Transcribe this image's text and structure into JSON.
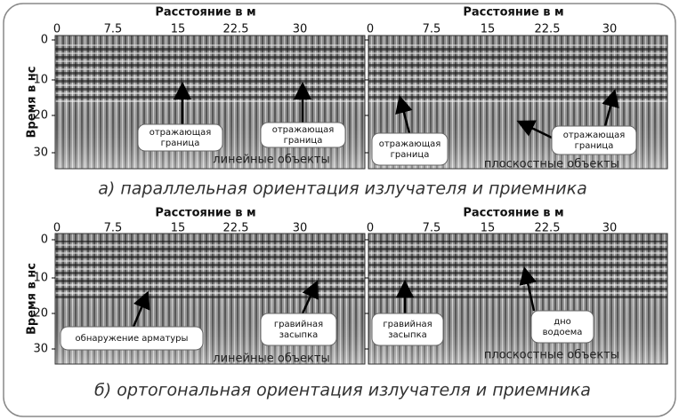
{
  "figure": {
    "rows": [
      {
        "y_axis_title": "Время в нс",
        "yticks": [
          "0",
          "10",
          "20",
          "30"
        ],
        "caption": "а) параллельная ориентация излучателя и приемника",
        "panels": [
          {
            "x_axis_title": "Расстояние в м",
            "xticks": [
              "0",
              "7.5",
              "15",
              "22.5",
              "30"
            ],
            "callouts": [
              [
                "отражающая",
                "граница"
              ],
              [
                "отражающая",
                "граница"
              ]
            ],
            "footer": "линейные объекты"
          },
          {
            "x_axis_title": "Расстояние в м",
            "xticks": [
              "0",
              "7.5",
              "15",
              "22.5",
              "30"
            ],
            "callouts": [
              [
                "отражающая",
                "граница"
              ],
              [
                "отражающая",
                "граница"
              ]
            ],
            "footer": "плоскостные объекты"
          }
        ]
      },
      {
        "y_axis_title": "Время в нс",
        "yticks": [
          "0",
          "10",
          "20",
          "30"
        ],
        "caption": "б) ортогональная ориентация излучателя и приемника",
        "panels": [
          {
            "x_axis_title": "Расстояние в м",
            "xticks": [
              "0",
              "7.5",
              "15",
              "22.5",
              "30"
            ],
            "callouts": [
              [
                "обнаружение арматуры"
              ],
              [
                "гравийная",
                "засыпка"
              ]
            ],
            "footer": "линейные объекты"
          },
          {
            "x_axis_title": "Расстояние в м",
            "xticks": [
              "0",
              "7.5",
              "15",
              "22.5",
              "30"
            ],
            "callouts": [
              [
                "гравийная",
                "засыпка"
              ],
              [
                "дно",
                "водоема"
              ]
            ],
            "footer": "плоскостные объекты"
          }
        ]
      }
    ]
  }
}
